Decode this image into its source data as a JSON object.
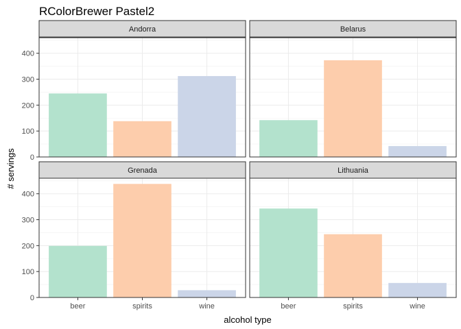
{
  "chart_data": {
    "type": "bar",
    "title": "RColorBrewer Pastel2",
    "xlabel": "alcohol type",
    "ylabel": "# servings",
    "categories": [
      "beer",
      "spirits",
      "wine"
    ],
    "ylim": [
      0,
      460
    ],
    "yticks": [
      0,
      100,
      200,
      300,
      400
    ],
    "grid": true,
    "legend": "none",
    "colors": {
      "beer": "#b3e2cd",
      "spirits": "#fdcdac",
      "wine": "#cbd5e8"
    },
    "panels": [
      {
        "name": "Andorra",
        "values": [
          245,
          138,
          312
        ]
      },
      {
        "name": "Belarus",
        "values": [
          142,
          373,
          42
        ]
      },
      {
        "name": "Grenada",
        "values": [
          199,
          438,
          28
        ]
      },
      {
        "name": "Lithuania",
        "values": [
          343,
          244,
          56
        ]
      }
    ]
  }
}
